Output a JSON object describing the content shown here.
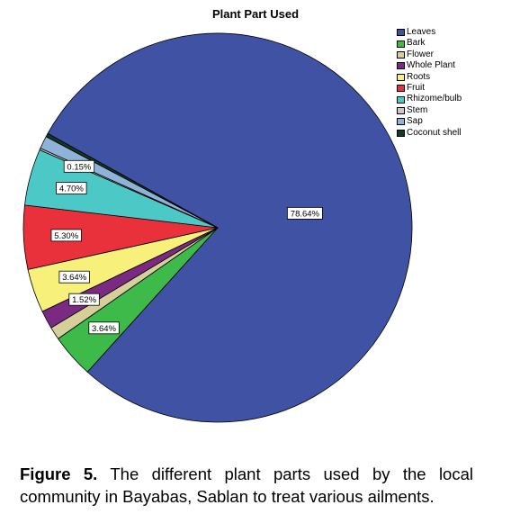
{
  "chart_data": {
    "type": "pie",
    "title": "Plant Part Used",
    "legend_position": "top-right",
    "slices": [
      {
        "label": "Leaves",
        "value": 78.64,
        "color": "#3f52a4",
        "data_label": "78.64%"
      },
      {
        "label": "Bark",
        "value": 3.64,
        "color": "#3dba4a",
        "data_label": "3.64%"
      },
      {
        "label": "Flower",
        "value": 1.06,
        "color": "#d6cf9a",
        "data_label": ""
      },
      {
        "label": "Whole Plant",
        "value": 1.52,
        "color": "#7a2a80",
        "data_label": "1.52%"
      },
      {
        "label": "Roots",
        "value": 3.64,
        "color": "#f7f07a",
        "data_label": "3.64%"
      },
      {
        "label": "Fruit",
        "value": 5.3,
        "color": "#e8313a",
        "data_label": "5.30%"
      },
      {
        "label": "Rhizome/bulb",
        "value": 4.7,
        "color": "#4cc9c7",
        "data_label": "4.70%"
      },
      {
        "label": "Stem",
        "value": 0.15,
        "color": "#c9c9c9",
        "data_label": "0.15%"
      },
      {
        "label": "Sap",
        "value": 1.06,
        "color": "#8fb3d8",
        "data_label": ""
      },
      {
        "label": "Coconut shell",
        "value": 0.29,
        "color": "#0f3a2a",
        "data_label": ""
      }
    ]
  },
  "caption": {
    "label": "Figure 5.",
    "text": "The different plant parts used by the local community in Bayabas, Sablan to treat  various ailments."
  }
}
